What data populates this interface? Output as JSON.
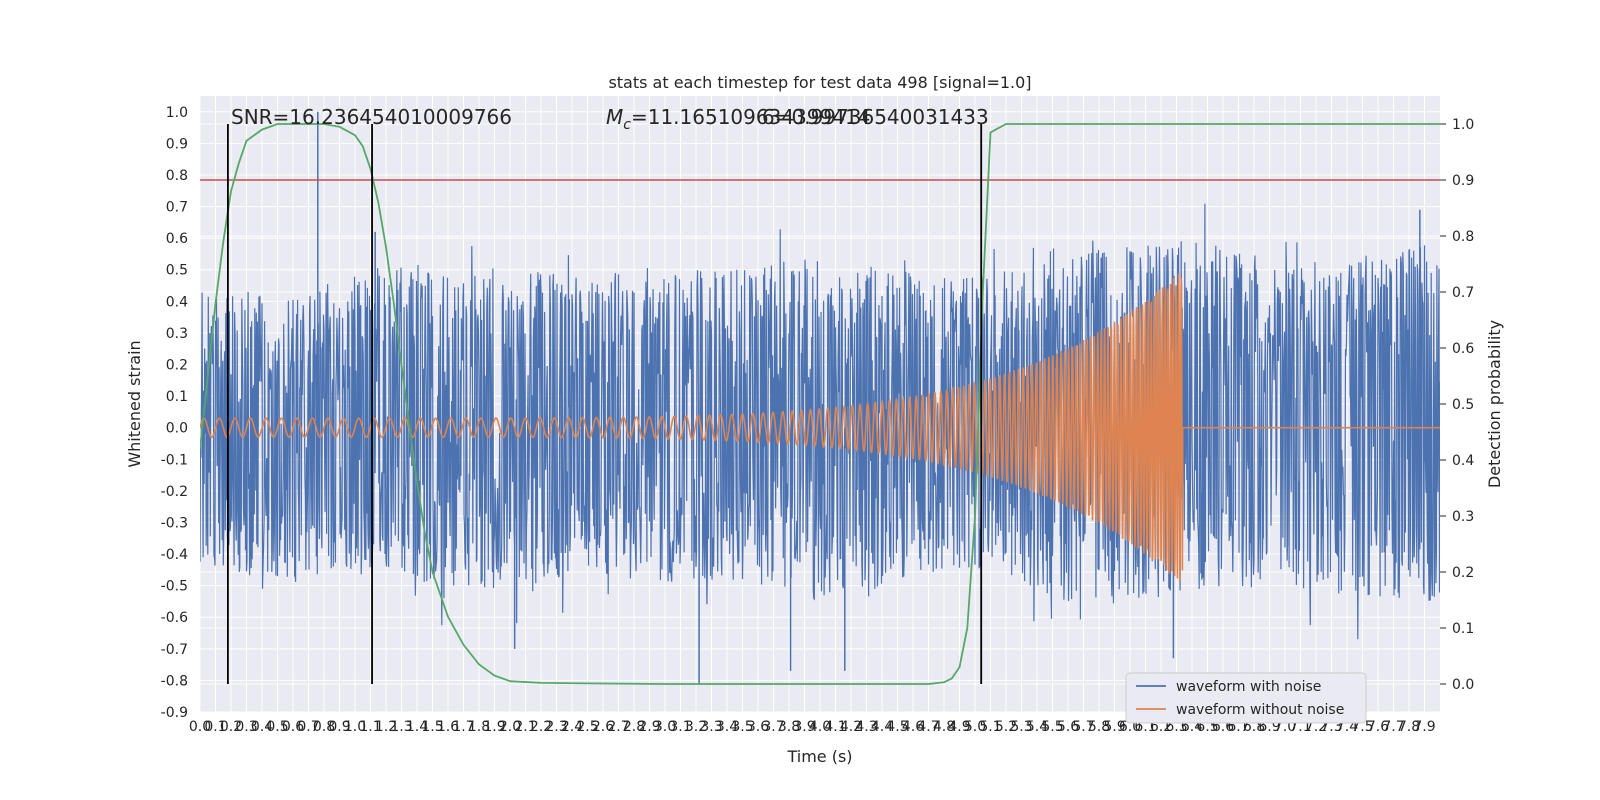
{
  "chart_data": {
    "type": "line",
    "title": "stats at each timestep for test data 498 [signal=1.0]",
    "xlabel": "Time (s)",
    "ylabel": "Whitened strain",
    "y2label": "Detection probability",
    "xlim": [
      0.0,
      8.0
    ],
    "ylim": [
      -0.9,
      1.05
    ],
    "y2lim": [
      -0.05,
      1.05
    ],
    "x_ticks": [
      "0.0",
      "0.1",
      "0.2",
      "0.3",
      "0.4",
      "0.5",
      "0.6",
      "0.7",
      "0.8",
      "0.9",
      "1.0",
      "1.1",
      "1.2",
      "1.3",
      "1.4",
      "1.5",
      "1.6",
      "1.7",
      "1.8",
      "1.9",
      "2.0",
      "2.1",
      "2.2",
      "2.3",
      "2.4",
      "2.5",
      "2.6",
      "2.7",
      "2.8",
      "2.9",
      "3.0",
      "3.1",
      "3.2",
      "3.3",
      "3.4",
      "3.5",
      "3.6",
      "3.7",
      "3.8",
      "3.9",
      "4.0",
      "4.1",
      "4.2",
      "4.3",
      "4.4",
      "4.5",
      "4.6",
      "4.7",
      "4.8",
      "4.9",
      "5.0",
      "5.1",
      "5.2",
      "5.3",
      "5.4",
      "5.5",
      "5.6",
      "5.7",
      "5.8",
      "5.9",
      "6.0",
      "6.1",
      "6.2",
      "6.3",
      "6.4",
      "6.5",
      "6.6",
      "6.7",
      "6.8",
      "6.9",
      "7.0",
      "7.1",
      "7.2",
      "7.3",
      "7.4",
      "7.5",
      "7.6",
      "7.7",
      "7.8",
      "7.9"
    ],
    "y_ticks": [
      "1.0",
      "0.9",
      "0.8",
      "0.7",
      "0.6",
      "0.5",
      "0.4",
      "0.3",
      "0.2",
      "0.1",
      "0.0",
      "-0.1",
      "-0.2",
      "-0.3",
      "-0.4",
      "-0.5",
      "-0.6",
      "-0.7",
      "-0.8",
      "-0.9"
    ],
    "y2_ticks": [
      "1.0",
      "0.9",
      "0.8",
      "0.7",
      "0.6",
      "0.5",
      "0.4",
      "0.3",
      "0.2",
      "0.1",
      "0.0"
    ],
    "annotations": {
      "snr": "SNR=16.236454010009766",
      "mc_label": "M",
      "mc_sub": "c",
      "mc_value": "=11.165109634399414",
      "overlap_text": "6=0.99736540031433"
    },
    "legend": {
      "position": "lower-right",
      "entries": [
        "waveform with noise",
        "waveform without noise"
      ]
    },
    "grid": true,
    "colors": {
      "noise": "#4c72b0",
      "clean": "#dd8452",
      "probability": "#55a868",
      "threshold": "#c44e52",
      "markers": "#000000",
      "background": "#eaeaf2"
    },
    "threshold_y2": 0.9,
    "vertical_markers_x": [
      0.18,
      1.11,
      5.04
    ],
    "noise_envelope": {
      "x": [
        0.0,
        0.5,
        1.0,
        1.5,
        2.0,
        2.5,
        3.0,
        3.5,
        4.0,
        4.5,
        5.0,
        5.5,
        6.0,
        6.5,
        7.0,
        7.5,
        8.0
      ],
      "upper": [
        0.45,
        0.42,
        0.5,
        0.52,
        0.5,
        0.48,
        0.52,
        0.5,
        0.55,
        0.5,
        0.48,
        0.55,
        0.58,
        0.6,
        0.52,
        0.55,
        0.6
      ],
      "lower": [
        -0.45,
        -0.48,
        -0.45,
        -0.5,
        -0.55,
        -0.45,
        -0.5,
        -0.48,
        -0.55,
        -0.5,
        -0.45,
        -0.55,
        -0.55,
        -0.52,
        -0.5,
        -0.55,
        -0.55
      ]
    },
    "noise_spikes": [
      {
        "x": 0.76,
        "y": 1.0
      },
      {
        "x": 1.13,
        "y": 0.62
      },
      {
        "x": 2.03,
        "y": -0.7
      },
      {
        "x": 3.22,
        "y": -0.81
      },
      {
        "x": 3.81,
        "y": -0.77
      },
      {
        "x": 4.16,
        "y": -0.77
      },
      {
        "x": 6.28,
        "y": -0.73
      },
      {
        "x": 7.87,
        "y": 0.69
      }
    ],
    "series": [
      {
        "name": "waveform without noise",
        "chirp": {
          "start": 0.0,
          "merger": 6.34,
          "amp_start": 0.03,
          "amp_end": 0.5,
          "freq_start": 10,
          "freq_end": 60
        }
      },
      {
        "name": "detection probability",
        "axis": "right",
        "x": [
          0.0,
          0.05,
          0.1,
          0.15,
          0.2,
          0.25,
          0.3,
          0.4,
          0.5,
          0.6,
          0.7,
          0.8,
          0.9,
          1.0,
          1.05,
          1.1,
          1.15,
          1.2,
          1.25,
          1.3,
          1.35,
          1.4,
          1.45,
          1.5,
          1.6,
          1.7,
          1.8,
          1.9,
          2.0,
          2.2,
          2.5,
          3.0,
          4.0,
          4.7,
          4.8,
          4.85,
          4.9,
          4.95,
          5.0,
          5.05,
          5.1,
          5.2,
          5.3,
          6.0,
          7.0,
          8.0
        ],
        "values": [
          0.42,
          0.55,
          0.68,
          0.79,
          0.88,
          0.93,
          0.97,
          0.99,
          1.0,
          1.0,
          1.0,
          1.0,
          0.995,
          0.98,
          0.96,
          0.92,
          0.86,
          0.78,
          0.68,
          0.57,
          0.46,
          0.36,
          0.27,
          0.2,
          0.12,
          0.07,
          0.035,
          0.015,
          0.005,
          0.002,
          0.001,
          0.0,
          0.0,
          0.0,
          0.003,
          0.01,
          0.03,
          0.1,
          0.3,
          0.7,
          0.985,
          1.0,
          1.0,
          1.0,
          1.0,
          1.0
        ]
      }
    ]
  }
}
